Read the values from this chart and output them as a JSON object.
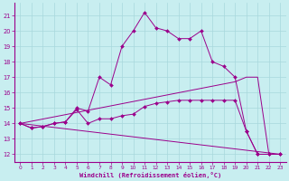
{
  "xlabel": "Windchill (Refroidissement éolien,°C)",
  "bg_color": "#c8eef0",
  "line_color": "#9b008b",
  "grid_color": "#a8d8dc",
  "xlim": [
    -0.5,
    23.5
  ],
  "ylim": [
    11.5,
    21.8
  ],
  "yticks": [
    12,
    13,
    14,
    15,
    16,
    17,
    18,
    19,
    20,
    21
  ],
  "xticks": [
    0,
    1,
    2,
    3,
    4,
    5,
    6,
    7,
    8,
    9,
    10,
    11,
    12,
    13,
    14,
    15,
    16,
    17,
    18,
    19,
    20,
    21,
    22,
    23
  ],
  "curve1_x": [
    0,
    1,
    2,
    3,
    4,
    5,
    6,
    7,
    8,
    9,
    10,
    11,
    12,
    13,
    14,
    15,
    16,
    17,
    18,
    19,
    20,
    21,
    22,
    23
  ],
  "curve1_y": [
    14.0,
    13.7,
    13.8,
    14.0,
    14.1,
    15.0,
    14.8,
    17.0,
    16.5,
    19.0,
    20.0,
    21.2,
    20.2,
    20.0,
    19.5,
    19.5,
    20.0,
    18.0,
    17.7,
    17.0,
    13.5,
    12.0,
    12.0,
    12.0
  ],
  "curve2_x": [
    0,
    1,
    2,
    3,
    4,
    5,
    6,
    7,
    8,
    9,
    10,
    11,
    12,
    13,
    14,
    15,
    16,
    17,
    18,
    19,
    20,
    21,
    22,
    23
  ],
  "curve2_y": [
    14.0,
    13.7,
    13.8,
    14.0,
    14.1,
    14.9,
    14.0,
    14.3,
    14.3,
    14.5,
    14.6,
    15.1,
    15.3,
    15.4,
    15.5,
    15.5,
    15.5,
    15.5,
    15.5,
    15.5,
    13.5,
    12.0,
    12.0,
    12.0
  ],
  "curve3_x": [
    0,
    19,
    20,
    21,
    22,
    23
  ],
  "curve3_y": [
    14.0,
    16.7,
    17.0,
    17.0,
    12.0,
    12.0
  ],
  "curve4_x": [
    0,
    23
  ],
  "curve4_y": [
    14.0,
    12.0
  ],
  "marker": "D",
  "marker_size": 2.0
}
